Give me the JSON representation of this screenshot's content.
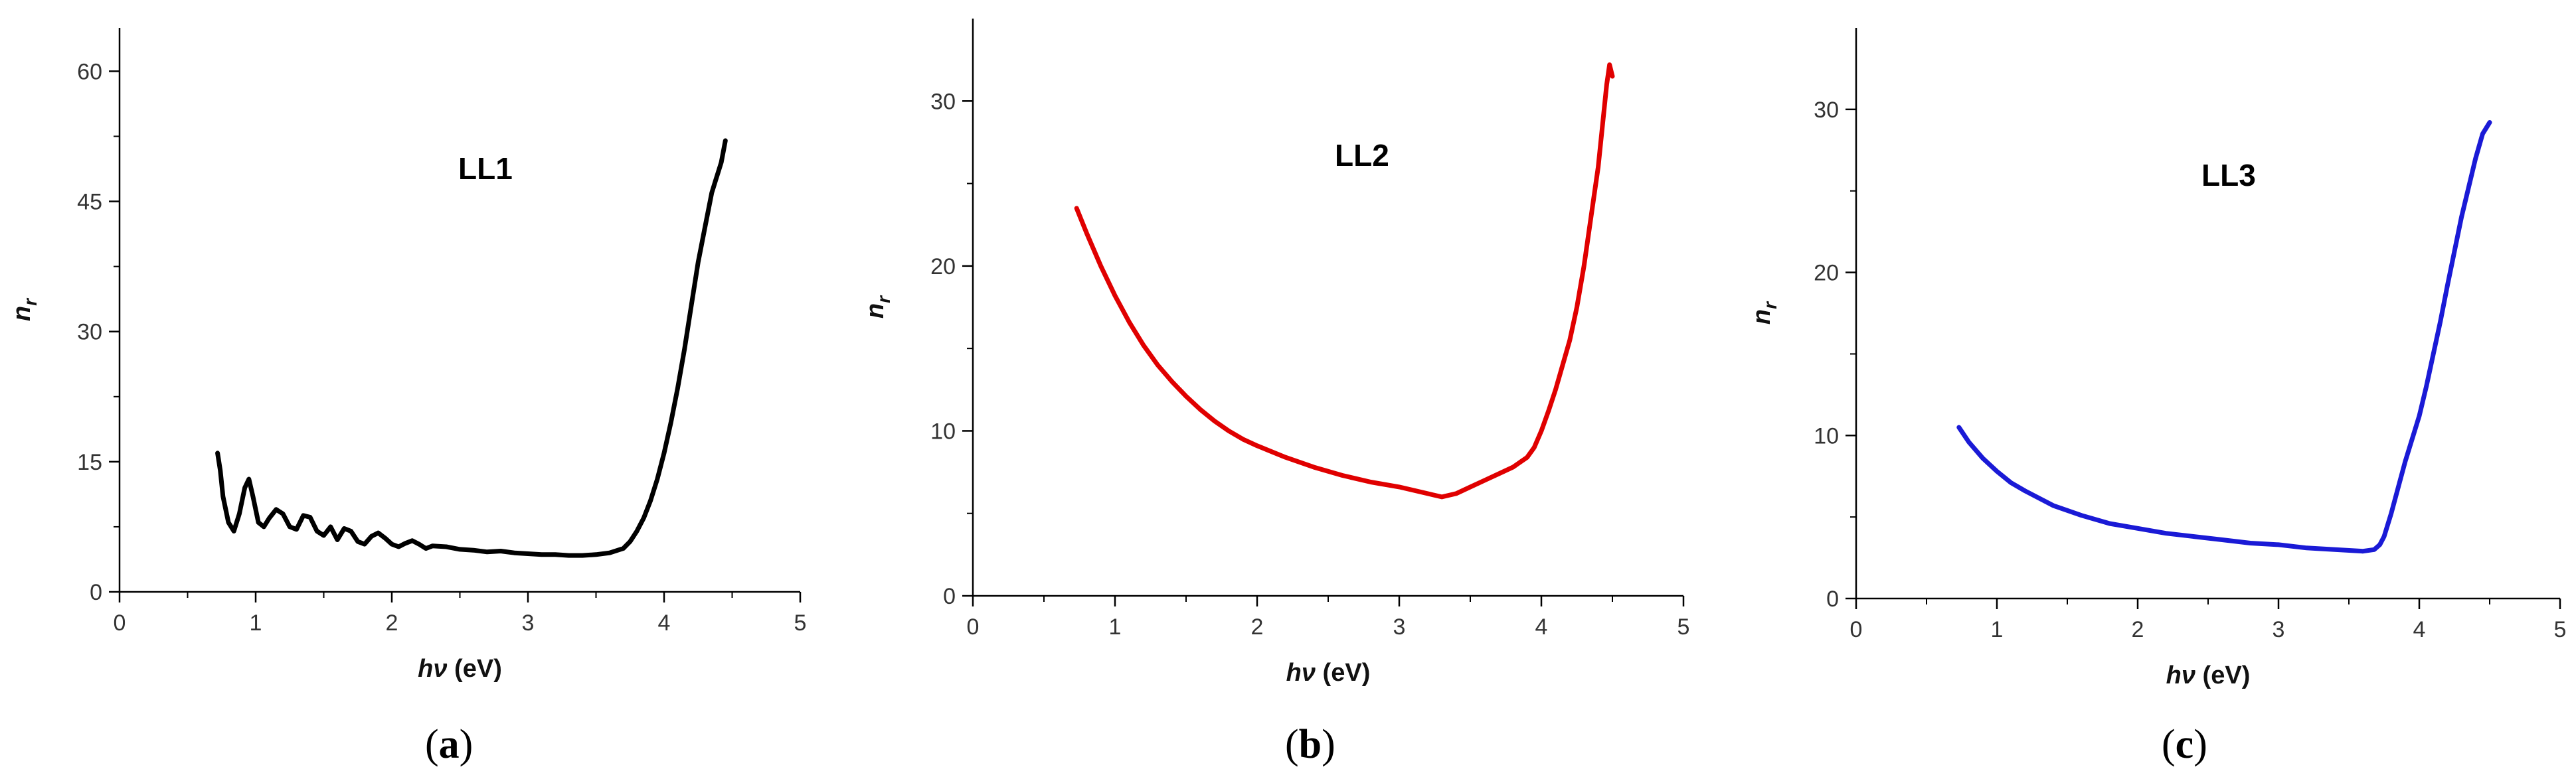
{
  "chart_data": [
    {
      "type": "line",
      "caption": "(a)",
      "caption_parts": {
        "open": "(",
        "letter": "a",
        "close": ")"
      },
      "annotation": "LL1",
      "xlabel": {
        "main": "hν",
        "unit": " (eV)"
      },
      "ylabel": {
        "main": "n",
        "sub": "r"
      },
      "xlim": [
        0,
        5
      ],
      "ylim": [
        0,
        65
      ],
      "xticks": [
        0,
        1,
        2,
        3,
        4,
        5
      ],
      "yticks": [
        0,
        15,
        30,
        45,
        60
      ],
      "grid": false,
      "color": "#000000",
      "series": [
        {
          "x": [
            0.72,
            0.74,
            0.76,
            0.8,
            0.84,
            0.88,
            0.92,
            0.95,
            0.98,
            1.02,
            1.06,
            1.1,
            1.15,
            1.2,
            1.25,
            1.3,
            1.35,
            1.4,
            1.45,
            1.5,
            1.55,
            1.6,
            1.65,
            1.7,
            1.75,
            1.8,
            1.85,
            1.9,
            1.95,
            2.0,
            2.05,
            2.1,
            2.15,
            2.2,
            2.25,
            2.3,
            2.4,
            2.5,
            2.6,
            2.7,
            2.8,
            2.9,
            3.0,
            3.1,
            3.2,
            3.3,
            3.4,
            3.5,
            3.6,
            3.7,
            3.75,
            3.8,
            3.85,
            3.9,
            3.95,
            4.0,
            4.05,
            4.1,
            4.15,
            4.2,
            4.25,
            4.3,
            4.35,
            4.38,
            4.4,
            4.42,
            4.45
          ],
          "y": [
            16,
            14,
            11,
            8,
            7,
            9,
            12,
            13,
            11,
            8,
            7.5,
            8.5,
            9.5,
            9,
            7.5,
            7.2,
            8.8,
            8.6,
            7.0,
            6.5,
            7.5,
            6.0,
            7.3,
            7.0,
            5.8,
            5.5,
            6.4,
            6.8,
            6.2,
            5.5,
            5.2,
            5.6,
            5.9,
            5.5,
            5.0,
            5.3,
            5.2,
            4.9,
            4.8,
            4.6,
            4.7,
            4.5,
            4.4,
            4.3,
            4.3,
            4.2,
            4.2,
            4.3,
            4.5,
            5.0,
            5.8,
            7.0,
            8.5,
            10.5,
            13,
            16,
            19.5,
            23.5,
            28,
            33,
            38,
            42,
            46,
            47.5,
            48.5,
            49.5,
            52
          ]
        }
      ]
    },
    {
      "type": "line",
      "caption": "(b)",
      "caption_parts": {
        "open": "(",
        "letter": "b",
        "close": ")"
      },
      "annotation": "LL2",
      "xlabel": {
        "main": "hν",
        "unit": " (eV)"
      },
      "ylabel": {
        "main": "n",
        "sub": "r"
      },
      "xlim": [
        0,
        5
      ],
      "ylim": [
        0,
        35
      ],
      "xticks": [
        0,
        1,
        2,
        3,
        4,
        5
      ],
      "yticks": [
        0,
        10,
        20,
        30
      ],
      "grid": false,
      "color": "#e00000",
      "series": [
        {
          "x": [
            0.73,
            0.8,
            0.9,
            1.0,
            1.1,
            1.2,
            1.3,
            1.4,
            1.5,
            1.6,
            1.7,
            1.8,
            1.9,
            2.0,
            2.2,
            2.4,
            2.6,
            2.8,
            3.0,
            3.2,
            3.3,
            3.4,
            3.5,
            3.6,
            3.7,
            3.8,
            3.9,
            3.95,
            4.0,
            4.05,
            4.1,
            4.15,
            4.2,
            4.25,
            4.3,
            4.35,
            4.4,
            4.43,
            4.46,
            4.48,
            4.5
          ],
          "y": [
            23.5,
            22.0,
            20.0,
            18.2,
            16.6,
            15.2,
            14.0,
            13.0,
            12.1,
            11.3,
            10.6,
            10.0,
            9.5,
            9.1,
            8.4,
            7.8,
            7.3,
            6.9,
            6.6,
            6.2,
            6.0,
            6.2,
            6.6,
            7.0,
            7.4,
            7.8,
            8.4,
            9.0,
            10.0,
            11.2,
            12.5,
            14.0,
            15.5,
            17.5,
            20.0,
            23.0,
            26.0,
            28.5,
            31.0,
            32.2,
            31.5
          ]
        }
      ]
    },
    {
      "type": "line",
      "caption": "(c)",
      "caption_parts": {
        "open": "(",
        "letter": "c",
        "close": ")"
      },
      "annotation": "LL3",
      "xlabel": {
        "main": "hν",
        "unit": " (eV)"
      },
      "ylabel": {
        "main": "n",
        "sub": "r"
      },
      "xlim": [
        0,
        5
      ],
      "ylim": [
        0,
        35
      ],
      "xticks": [
        0,
        1,
        2,
        3,
        4,
        5
      ],
      "yticks": [
        0,
        10,
        20,
        30
      ],
      "grid": false,
      "color": "#1a1ad6",
      "series": [
        {
          "x": [
            0.73,
            0.8,
            0.9,
            1.0,
            1.1,
            1.2,
            1.4,
            1.6,
            1.8,
            2.0,
            2.2,
            2.4,
            2.6,
            2.8,
            3.0,
            3.2,
            3.4,
            3.6,
            3.68,
            3.72,
            3.75,
            3.8,
            3.85,
            3.9,
            3.95,
            4.0,
            4.05,
            4.1,
            4.15,
            4.2,
            4.25,
            4.3,
            4.35,
            4.4,
            4.45,
            4.5
          ],
          "y": [
            10.5,
            9.6,
            8.6,
            7.8,
            7.1,
            6.6,
            5.7,
            5.1,
            4.6,
            4.3,
            4.0,
            3.8,
            3.6,
            3.4,
            3.3,
            3.1,
            3.0,
            2.9,
            3.0,
            3.3,
            3.8,
            5.2,
            6.8,
            8.4,
            9.8,
            11.2,
            13.0,
            15.0,
            17.0,
            19.2,
            21.3,
            23.4,
            25.2,
            27.0,
            28.5,
            29.2
          ]
        }
      ]
    }
  ]
}
